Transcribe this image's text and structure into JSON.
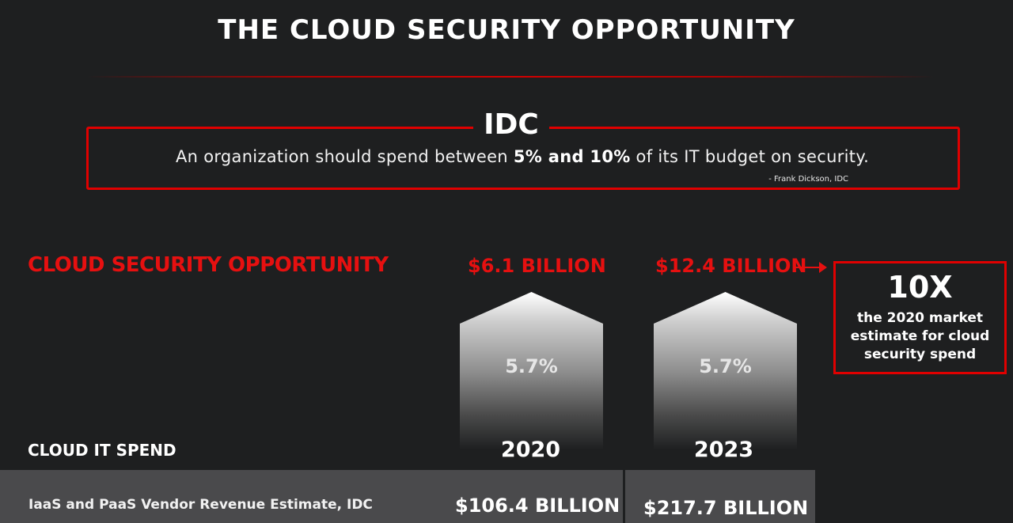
{
  "header": {
    "title": "THE CLOUD SECURITY OPPORTUNITY"
  },
  "quote": {
    "label": "IDC",
    "text_before": "An organization should spend between ",
    "text_bold": "5% and 10%",
    "text_after": " of its IT budget on  security.",
    "attribution": "- Frank Dickson, IDC"
  },
  "opportunity": {
    "heading": "CLOUD SECURITY OPPORTUNITY",
    "columns": [
      {
        "year": "2020",
        "amount": "$6.1 BILLION",
        "percent": "5.7%",
        "revenue": "$106.4 BILLION"
      },
      {
        "year": "2023",
        "amount": "$12.4 BILLION",
        "percent": "5.7%",
        "revenue": "$217.7 BILLION"
      }
    ],
    "callout": {
      "big": "10X",
      "text": "the 2020 market estimate for cloud security spend"
    }
  },
  "table": {
    "section_label": "CLOUD IT SPEND",
    "row_label": "IaaS and PaaS Vendor Revenue Estimate, IDC"
  },
  "colors": {
    "accent": "#e61010",
    "background": "#1e1f20",
    "band": "#4a4a4c"
  }
}
